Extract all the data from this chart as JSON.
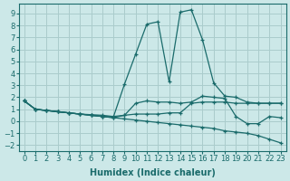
{
  "xlabel": "Humidex (Indice chaleur)",
  "background_color": "#cce8e8",
  "grid_color": "#aacccc",
  "line_color": "#1a6b6b",
  "x_ticks": [
    0,
    1,
    2,
    3,
    4,
    5,
    6,
    7,
    8,
    9,
    10,
    11,
    12,
    13,
    14,
    15,
    16,
    17,
    18,
    19,
    20,
    21,
    22,
    23
  ],
  "ylim": [
    -2.5,
    9.8
  ],
  "xlim": [
    -0.5,
    23.5
  ],
  "series": [
    [
      1.7,
      1.0,
      0.9,
      0.8,
      0.7,
      0.6,
      0.5,
      0.4,
      0.3,
      0.2,
      0.1,
      0.0,
      -0.1,
      -0.2,
      -0.3,
      -0.4,
      -0.5,
      -0.6,
      -0.8,
      -0.9,
      -1.0,
      -1.2,
      -1.5,
      -1.8
    ],
    [
      1.7,
      1.0,
      0.9,
      0.8,
      0.7,
      0.6,
      0.55,
      0.5,
      0.4,
      0.5,
      0.6,
      0.6,
      0.6,
      0.7,
      0.7,
      1.5,
      1.6,
      1.6,
      1.6,
      1.5,
      1.5,
      1.5,
      1.5,
      1.5
    ],
    [
      1.7,
      1.0,
      0.9,
      0.8,
      0.7,
      0.6,
      0.5,
      0.4,
      0.3,
      0.5,
      1.5,
      1.7,
      1.6,
      1.6,
      1.5,
      1.6,
      2.1,
      2.0,
      1.9,
      0.4,
      -0.2,
      -0.2,
      0.4,
      0.3
    ],
    [
      1.7,
      1.0,
      0.9,
      0.8,
      0.7,
      0.6,
      0.5,
      0.4,
      0.35,
      3.1,
      5.6,
      8.1,
      8.3,
      3.3,
      9.1,
      9.3,
      6.8,
      3.2,
      2.1,
      2.0,
      1.6,
      1.5,
      1.5,
      1.5
    ]
  ]
}
